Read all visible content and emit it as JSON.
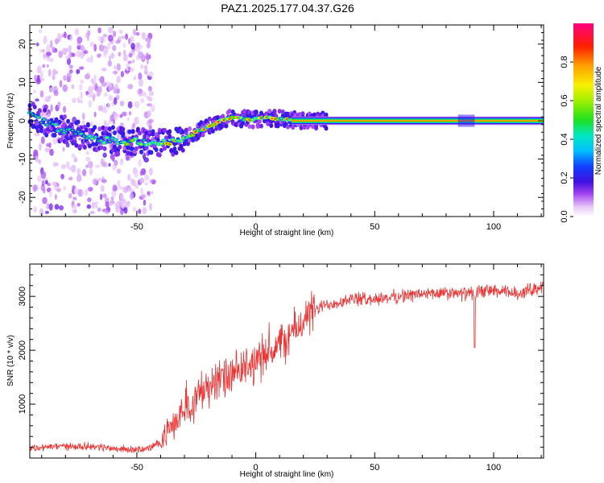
{
  "title": "PAZ1.2025.177.04.37.G26",
  "chart_data": [
    {
      "type": "heatmap",
      "xlabel": "Height of straight line (km)",
      "ylabel": "Frequency (Hz)",
      "xlim": [
        -95,
        121
      ],
      "ylim": [
        -25,
        25
      ],
      "xticks": [
        -50,
        0,
        50,
        100
      ],
      "yticks": [
        -20,
        -10,
        0,
        10,
        20
      ],
      "colorbar": {
        "label": "Normalized spectral amplitude",
        "ticks": [
          "0.0",
          "0.2",
          "0.4",
          "0.6",
          "0.8"
        ],
        "tick_values": [
          0.0,
          0.2,
          0.4,
          0.6,
          0.8
        ],
        "range": [
          0.0,
          1.0
        ]
      },
      "ridge": {
        "x": [
          -95,
          -85,
          -75,
          -65,
          -55,
          -45,
          -40,
          -35,
          -30,
          -25,
          -20,
          -15,
          -10,
          -5,
          0,
          5,
          10,
          15,
          20,
          30,
          50,
          70,
          90,
          110,
          121
        ],
        "frequency": [
          1.5,
          -1.5,
          -3.5,
          -5,
          -5.5,
          -5.5,
          -6,
          -5.5,
          -4.5,
          -3,
          -1.5,
          0,
          0.8,
          0.5,
          0.3,
          0.8,
          0.6,
          0.2,
          0.0,
          0.0,
          0.0,
          0.0,
          0.0,
          0.0,
          0.0
        ]
      }
    },
    {
      "type": "line",
      "xlabel": "Height of straight line (km)",
      "ylabel": "SNR (10 * v/v)",
      "xlim": [
        -95,
        121
      ],
      "ylim": [
        0,
        3600
      ],
      "xticks": [
        -50,
        0,
        50,
        100
      ],
      "yticks": [
        1000,
        2000,
        3000
      ],
      "color": "#ee3333",
      "series": [
        {
          "x": [
            -95,
            -90,
            -80,
            -70,
            -60,
            -50,
            -45,
            -40,
            -35,
            -30,
            -25,
            -20,
            -15,
            -10,
            -5,
            0,
            5,
            10,
            15,
            20,
            25,
            30,
            35,
            40,
            50,
            60,
            70,
            80,
            90,
            95,
            100,
            110,
            121
          ],
          "values": [
            180,
            200,
            220,
            220,
            180,
            150,
            180,
            300,
            600,
            900,
            1150,
            1350,
            1450,
            1500,
            1650,
            1800,
            1950,
            2100,
            2300,
            2550,
            2750,
            2850,
            2900,
            2950,
            2950,
            3000,
            3050,
            3050,
            3050,
            3100,
            3100,
            3050,
            3200
          ]
        }
      ]
    }
  ]
}
